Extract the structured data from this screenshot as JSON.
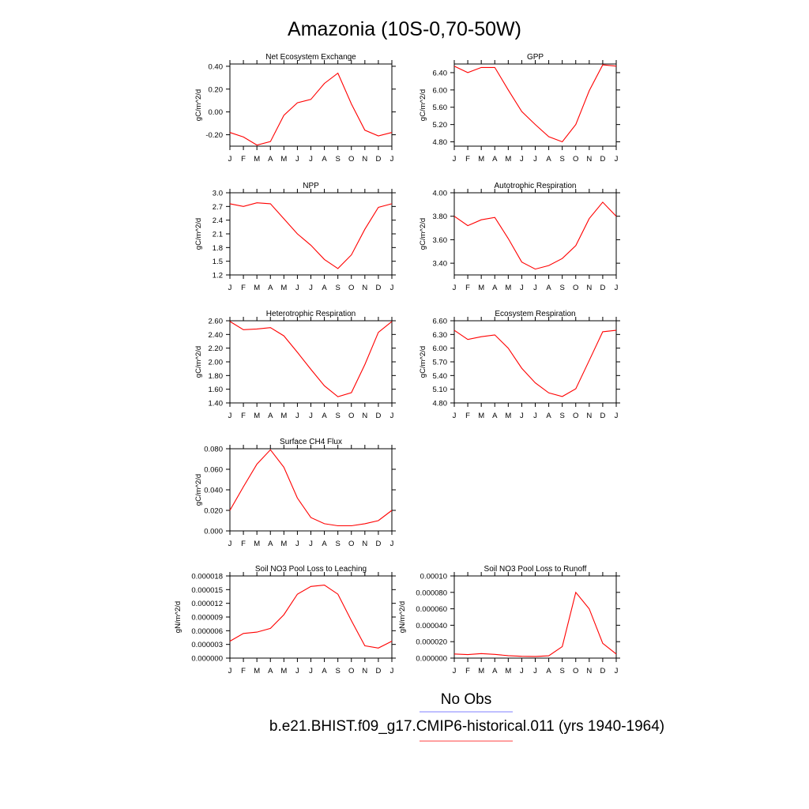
{
  "figure": {
    "title": "Amazonia (10S-0,70-50W)"
  },
  "legend": {
    "items": [
      {
        "label": "No Obs",
        "color": "#8080ff"
      },
      {
        "label": "b.e21.BHIST.f09_g17.CMIP6-historical.011 (yrs 1940-1964)",
        "color": "#ff4040"
      }
    ]
  },
  "chart_data": [
    {
      "id": "nee",
      "type": "line",
      "title": "Net Ecosystem Exchange",
      "ylabel": "gC/m^2/d",
      "x": [
        "J",
        "F",
        "M",
        "A",
        "M",
        "J",
        "J",
        "A",
        "S",
        "O",
        "N",
        "D",
        "J"
      ],
      "ylim": [
        -0.3,
        0.42
      ],
      "yticks": [
        "0.40",
        "0.20",
        "0.00",
        "-0.20"
      ],
      "ytick_values": [
        0.4,
        0.2,
        0.0,
        -0.2
      ],
      "series": [
        {
          "color": "#ff0000",
          "values": [
            -0.18,
            -0.22,
            -0.29,
            -0.26,
            -0.03,
            0.08,
            0.11,
            0.25,
            0.34,
            0.07,
            -0.16,
            -0.21,
            -0.18
          ]
        }
      ]
    },
    {
      "id": "gpp",
      "type": "line",
      "title": "GPP",
      "ylabel": "gC/m^2/d",
      "x": [
        "J",
        "F",
        "M",
        "A",
        "M",
        "J",
        "J",
        "A",
        "S",
        "O",
        "N",
        "D",
        "J"
      ],
      "ylim": [
        4.7,
        6.6
      ],
      "yticks": [
        "6.40",
        "6.00",
        "5.60",
        "5.20",
        "4.80"
      ],
      "ytick_values": [
        6.4,
        6.0,
        5.6,
        5.2,
        4.8
      ],
      "series": [
        {
          "color": "#ff0000",
          "values": [
            6.55,
            6.4,
            6.52,
            6.52,
            6.0,
            5.5,
            5.2,
            4.92,
            4.8,
            5.2,
            5.98,
            6.58,
            6.55
          ]
        }
      ]
    },
    {
      "id": "npp",
      "type": "line",
      "title": "NPP",
      "ylabel": "gC/m^2/d",
      "x": [
        "J",
        "F",
        "M",
        "A",
        "M",
        "J",
        "J",
        "A",
        "S",
        "O",
        "N",
        "D",
        "J"
      ],
      "ylim": [
        1.2,
        3.0
      ],
      "yticks": [
        "3.0",
        "2.7",
        "2.4",
        "2.1",
        "1.8",
        "1.5",
        "1.2"
      ],
      "ytick_values": [
        3.0,
        2.7,
        2.4,
        2.1,
        1.8,
        1.5,
        1.2
      ],
      "series": [
        {
          "color": "#ff0000",
          "values": [
            2.76,
            2.7,
            2.78,
            2.76,
            2.43,
            2.1,
            1.85,
            1.54,
            1.34,
            1.64,
            2.2,
            2.68,
            2.76
          ]
        }
      ]
    },
    {
      "id": "ar",
      "type": "line",
      "title": "Autotrophic Respiration",
      "ylabel": "gC/m^2/d",
      "x": [
        "J",
        "F",
        "M",
        "A",
        "M",
        "J",
        "J",
        "A",
        "S",
        "O",
        "N",
        "D",
        "J"
      ],
      "ylim": [
        3.3,
        4.0
      ],
      "yticks": [
        "4.00",
        "3.80",
        "3.60",
        "3.40"
      ],
      "ytick_values": [
        4.0,
        3.8,
        3.6,
        3.4
      ],
      "series": [
        {
          "color": "#ff0000",
          "values": [
            3.8,
            3.72,
            3.77,
            3.79,
            3.61,
            3.41,
            3.35,
            3.38,
            3.44,
            3.55,
            3.78,
            3.92,
            3.8
          ]
        }
      ]
    },
    {
      "id": "hr",
      "type": "line",
      "title": "Heterotrophic Respiration",
      "ylabel": "gC/m^2/d",
      "x": [
        "J",
        "F",
        "M",
        "A",
        "M",
        "J",
        "J",
        "A",
        "S",
        "O",
        "N",
        "D",
        "J"
      ],
      "ylim": [
        1.4,
        2.6
      ],
      "yticks": [
        "2.60",
        "2.40",
        "2.20",
        "2.00",
        "1.80",
        "1.60",
        "1.40"
      ],
      "ytick_values": [
        2.6,
        2.4,
        2.2,
        2.0,
        1.8,
        1.6,
        1.4
      ],
      "series": [
        {
          "color": "#ff0000",
          "values": [
            2.59,
            2.47,
            2.48,
            2.5,
            2.38,
            2.14,
            1.89,
            1.65,
            1.49,
            1.55,
            1.96,
            2.43,
            2.59
          ]
        }
      ]
    },
    {
      "id": "er",
      "type": "line",
      "title": "Ecosystem Respiration",
      "ylabel": "gC/m^2/d",
      "x": [
        "J",
        "F",
        "M",
        "A",
        "M",
        "J",
        "J",
        "A",
        "S",
        "O",
        "N",
        "D",
        "J"
      ],
      "ylim": [
        4.8,
        6.6
      ],
      "yticks": [
        "6.60",
        "6.30",
        "6.00",
        "5.70",
        "5.40",
        "5.10",
        "4.80"
      ],
      "ytick_values": [
        6.6,
        6.3,
        6.0,
        5.7,
        5.4,
        5.1,
        4.8
      ],
      "series": [
        {
          "color": "#ff0000",
          "values": [
            6.39,
            6.19,
            6.25,
            6.29,
            6.0,
            5.56,
            5.24,
            5.02,
            4.94,
            5.11,
            5.73,
            6.36,
            6.39
          ]
        }
      ]
    },
    {
      "id": "ch4",
      "type": "line",
      "title": "Surface CH4 Flux",
      "ylabel": "gC/m^2/d",
      "x": [
        "J",
        "F",
        "M",
        "A",
        "M",
        "J",
        "J",
        "A",
        "S",
        "O",
        "N",
        "D",
        "J"
      ],
      "ylim": [
        0.0,
        0.08
      ],
      "yticks": [
        "0.080",
        "0.060",
        "0.040",
        "0.020",
        "0.000"
      ],
      "ytick_values": [
        0.08,
        0.06,
        0.04,
        0.02,
        0.0
      ],
      "series": [
        {
          "color": "#ff0000",
          "values": [
            0.02,
            0.043,
            0.065,
            0.079,
            0.062,
            0.032,
            0.013,
            0.007,
            0.005,
            0.005,
            0.007,
            0.01,
            0.02
          ]
        }
      ]
    },
    {
      "id": "leach",
      "type": "line",
      "title": "Soil NO3 Pool Loss to Leaching",
      "ylabel": "gN/m^2/d",
      "x": [
        "J",
        "F",
        "M",
        "A",
        "M",
        "J",
        "J",
        "A",
        "S",
        "O",
        "N",
        "D",
        "J"
      ],
      "ylim": [
        0.0,
        1.8e-05
      ],
      "yticks": [
        "0.000018",
        "0.000015",
        "0.000012",
        "0.000009",
        "0.000006",
        "0.000003",
        "0.000000"
      ],
      "ytick_values": [
        1.8e-05,
        1.5e-05,
        1.2e-05,
        9e-06,
        6e-06,
        3e-06,
        0.0
      ],
      "series": [
        {
          "color": "#ff0000",
          "values": [
            3.7e-06,
            5.4e-06,
            5.7e-06,
            6.5e-06,
            9.5e-06,
            1.4e-05,
            1.57e-05,
            1.6e-05,
            1.4e-05,
            8.2e-06,
            2.7e-06,
            2.2e-06,
            3.7e-06
          ]
        }
      ]
    },
    {
      "id": "runoff",
      "type": "line",
      "title": "Soil NO3 Pool Loss to Runoff",
      "ylabel": "gN/m^2/d",
      "x": [
        "J",
        "F",
        "M",
        "A",
        "M",
        "J",
        "J",
        "A",
        "S",
        "O",
        "N",
        "D",
        "J"
      ],
      "ylim": [
        0.0,
        0.0001
      ],
      "yticks": [
        "0.00010",
        "0.000080",
        "0.000060",
        "0.000040",
        "0.000020",
        "0.000000"
      ],
      "ytick_values": [
        0.0001,
        8e-05,
        6e-05,
        4e-05,
        2e-05,
        0.0
      ],
      "series": [
        {
          "color": "#ff0000",
          "values": [
            5e-06,
            4.2e-06,
            5.5e-06,
            4.5e-06,
            3e-06,
            2.2e-06,
            2e-06,
            2.8e-06,
            1.4e-05,
            8e-05,
            6e-05,
            1.8e-05,
            5e-06
          ]
        }
      ]
    }
  ]
}
